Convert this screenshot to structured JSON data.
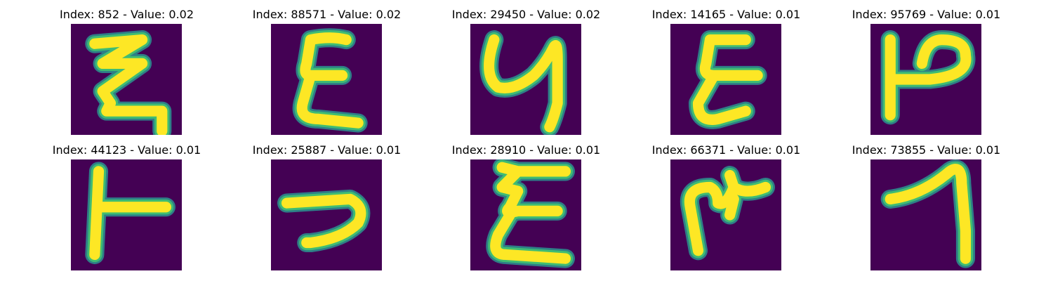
{
  "colors": {
    "background": "#440154",
    "outer_edge": "#2c8c8d",
    "mid_edge": "#3fbc73",
    "stroke_core": "#fde725"
  },
  "panels": [
    {
      "index": "852",
      "value": "0.02",
      "title": "Index: 852 - Value: 0.02"
    },
    {
      "index": "88571",
      "value": "0.02",
      "title": "Index: 88571 - Value: 0.02"
    },
    {
      "index": "29450",
      "value": "0.02",
      "title": "Index: 29450 - Value: 0.02"
    },
    {
      "index": "14165",
      "value": "0.01",
      "title": "Index: 14165 - Value: 0.01"
    },
    {
      "index": "95769",
      "value": "0.01",
      "title": "Index: 95769 - Value: 0.01"
    },
    {
      "index": "44123",
      "value": "0.01",
      "title": "Index: 44123 - Value: 0.01"
    },
    {
      "index": "25887",
      "value": "0.01",
      "title": "Index: 25887 - Value: 0.01"
    },
    {
      "index": "28910",
      "value": "0.01",
      "title": "Index: 28910 - Value: 0.01"
    },
    {
      "index": "66371",
      "value": "0.01",
      "title": "Index: 66371 - Value: 0.01"
    },
    {
      "index": "73855",
      "value": "0.01",
      "title": "Index: 73855 - Value: 0.01"
    }
  ]
}
